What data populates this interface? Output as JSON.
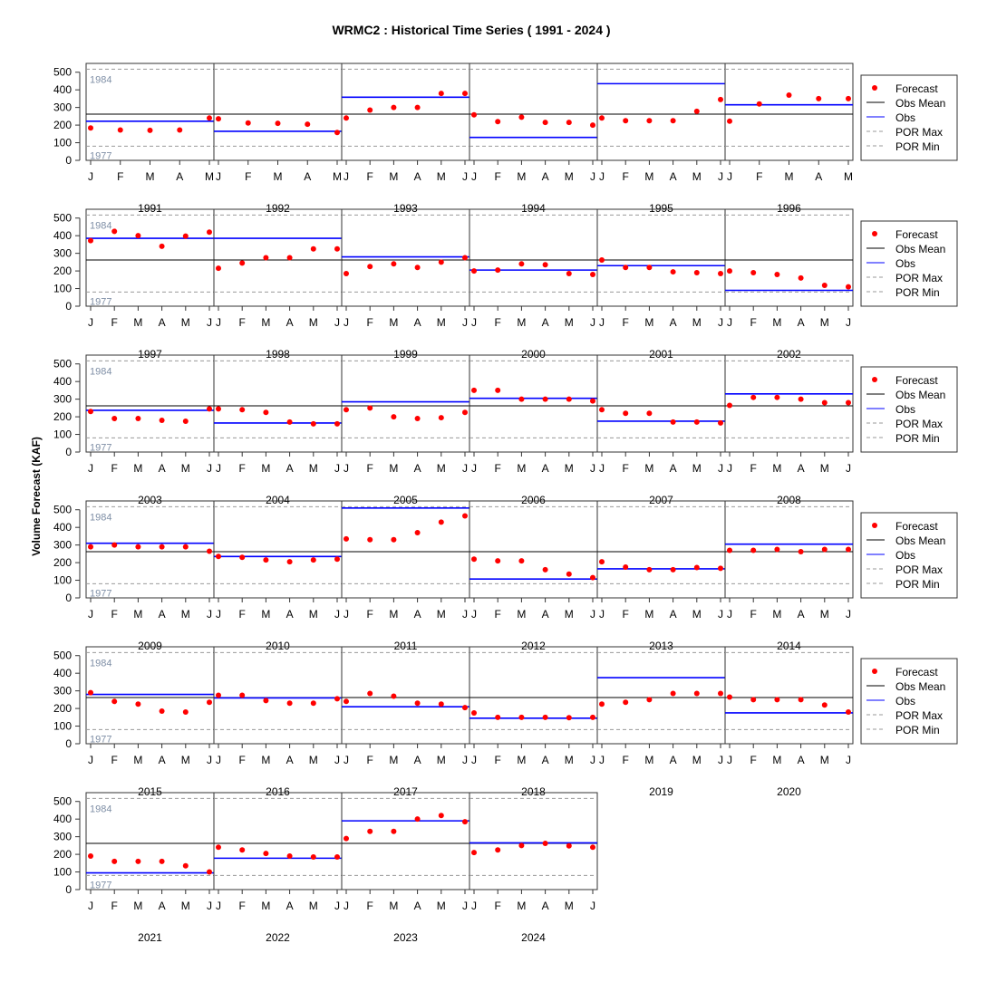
{
  "chart_data": {
    "type": "scatter",
    "title": "WRMC2 : Historical Time Series ( 1991 - 2024 )",
    "ylabel": "Volume Forecast (KAF)",
    "ylim": [
      0,
      550
    ],
    "yticks": [
      0,
      100,
      200,
      300,
      400,
      500
    ],
    "obs_mean": 262,
    "por_max": {
      "value": 517,
      "label": "1984"
    },
    "por_min": {
      "value": 80,
      "label": "1977"
    },
    "legend_labels": [
      "Forecast",
      "Obs Mean",
      "Obs",
      "POR Max",
      "POR Min"
    ],
    "legend_position": "right",
    "colors": {
      "forecast": "#ff0000",
      "obs": "#0000ff",
      "obs_mean": "#000000",
      "por": "#999999",
      "por_label": "#7f8fa6"
    },
    "years": [
      {
        "year": "1991",
        "months": [
          "J",
          "F",
          "M",
          "A",
          "M"
        ],
        "forecast": [
          184,
          172,
          170,
          172,
          240
        ],
        "obs": 222
      },
      {
        "year": "1992",
        "months": [
          "J",
          "F",
          "M",
          "A",
          "M"
        ],
        "forecast": [
          236,
          212,
          210,
          205,
          158
        ],
        "obs": 165
      },
      {
        "year": "1993",
        "months": [
          "J",
          "F",
          "M",
          "A",
          "M",
          "J"
        ],
        "forecast": [
          240,
          285,
          300,
          300,
          380,
          380
        ],
        "obs": 358
      },
      {
        "year": "1994",
        "months": [
          "J",
          "F",
          "M",
          "A",
          "M",
          "J"
        ],
        "forecast": [
          258,
          220,
          245,
          215,
          215,
          200
        ],
        "obs": 130
      },
      {
        "year": "1995",
        "months": [
          "J",
          "F",
          "M",
          "A",
          "M",
          "J"
        ],
        "forecast": [
          240,
          225,
          225,
          225,
          278,
          345
        ],
        "obs": 435
      },
      {
        "year": "1996",
        "months": [
          "J",
          "F",
          "M",
          "A",
          "M"
        ],
        "forecast": [
          222,
          320,
          370,
          350,
          350
        ],
        "obs": 315
      },
      {
        "year": "1997",
        "months": [
          "J",
          "F",
          "M",
          "A",
          "M",
          "J"
        ],
        "forecast": [
          372,
          425,
          400,
          340,
          398,
          420
        ],
        "obs": 385
      },
      {
        "year": "1998",
        "months": [
          "J",
          "F",
          "M",
          "A",
          "M",
          "J"
        ],
        "forecast": [
          215,
          245,
          275,
          275,
          325,
          325
        ],
        "obs": 385
      },
      {
        "year": "1999",
        "months": [
          "J",
          "F",
          "M",
          "A",
          "M",
          "J"
        ],
        "forecast": [
          185,
          225,
          240,
          220,
          250,
          275
        ],
        "obs": 280
      },
      {
        "year": "2000",
        "months": [
          "J",
          "F",
          "M",
          "A",
          "M",
          "J"
        ],
        "forecast": [
          200,
          205,
          240,
          235,
          185,
          180
        ],
        "obs": 205
      },
      {
        "year": "2001",
        "months": [
          "J",
          "F",
          "M",
          "A",
          "M",
          "J"
        ],
        "forecast": [
          262,
          220,
          220,
          195,
          190,
          185
        ],
        "obs": 230
      },
      {
        "year": "2002",
        "months": [
          "J",
          "F",
          "M",
          "A",
          "M",
          "J"
        ],
        "forecast": [
          200,
          190,
          180,
          160,
          118,
          110
        ],
        "obs": 90
      },
      {
        "year": "2003",
        "months": [
          "J",
          "F",
          "M",
          "A",
          "M",
          "J"
        ],
        "forecast": [
          230,
          190,
          190,
          180,
          175,
          245
        ],
        "obs": 237
      },
      {
        "year": "2004",
        "months": [
          "J",
          "F",
          "M",
          "A",
          "M",
          "J"
        ],
        "forecast": [
          245,
          240,
          225,
          170,
          160,
          160
        ],
        "obs": 165
      },
      {
        "year": "2005",
        "months": [
          "J",
          "F",
          "M",
          "A",
          "M",
          "J"
        ],
        "forecast": [
          240,
          250,
          200,
          190,
          195,
          225
        ],
        "obs": 285
      },
      {
        "year": "2006",
        "months": [
          "J",
          "F",
          "M",
          "A",
          "M",
          "J"
        ],
        "forecast": [
          350,
          350,
          300,
          300,
          300,
          290
        ],
        "obs": 305
      },
      {
        "year": "2007",
        "months": [
          "J",
          "F",
          "M",
          "A",
          "M",
          "J"
        ],
        "forecast": [
          240,
          220,
          220,
          170,
          170,
          165
        ],
        "obs": 175
      },
      {
        "year": "2008",
        "months": [
          "J",
          "F",
          "M",
          "A",
          "M",
          "J"
        ],
        "forecast": [
          265,
          310,
          310,
          300,
          280,
          280
        ],
        "obs": 330
      },
      {
        "year": "2009",
        "months": [
          "J",
          "F",
          "M",
          "A",
          "M",
          "J"
        ],
        "forecast": [
          290,
          300,
          290,
          290,
          290,
          265
        ],
        "obs": 310
      },
      {
        "year": "2010",
        "months": [
          "J",
          "F",
          "M",
          "A",
          "M",
          "J"
        ],
        "forecast": [
          235,
          230,
          215,
          205,
          215,
          220
        ],
        "obs": 235
      },
      {
        "year": "2011",
        "months": [
          "J",
          "F",
          "M",
          "A",
          "M",
          "J"
        ],
        "forecast": [
          335,
          330,
          330,
          370,
          430,
          465
        ],
        "obs": 510
      },
      {
        "year": "2012",
        "months": [
          "J",
          "F",
          "M",
          "A",
          "M",
          "J"
        ],
        "forecast": [
          220,
          210,
          210,
          160,
          135,
          115
        ],
        "obs": 107
      },
      {
        "year": "2013",
        "months": [
          "J",
          "F",
          "M",
          "A",
          "M",
          "J"
        ],
        "forecast": [
          205,
          175,
          160,
          160,
          172,
          168
        ],
        "obs": 165
      },
      {
        "year": "2014",
        "months": [
          "J",
          "F",
          "M",
          "A",
          "M",
          "J"
        ],
        "forecast": [
          270,
          270,
          275,
          262,
          275,
          275
        ],
        "obs": 305
      },
      {
        "year": "2015",
        "months": [
          "J",
          "F",
          "M",
          "A",
          "M",
          "J"
        ],
        "forecast": [
          290,
          240,
          225,
          185,
          180,
          235
        ],
        "obs": 280
      },
      {
        "year": "2016",
        "months": [
          "J",
          "F",
          "M",
          "A",
          "M",
          "J"
        ],
        "forecast": [
          275,
          275,
          245,
          230,
          230,
          255
        ],
        "obs": 260
      },
      {
        "year": "2017",
        "months": [
          "J",
          "F",
          "M",
          "A",
          "M",
          "J"
        ],
        "forecast": [
          240,
          285,
          270,
          230,
          225,
          205
        ],
        "obs": 210
      },
      {
        "year": "2018",
        "months": [
          "J",
          "F",
          "M",
          "A",
          "M",
          "J"
        ],
        "forecast": [
          175,
          150,
          150,
          150,
          148,
          150
        ],
        "obs": 145
      },
      {
        "year": "2019",
        "months": [
          "J",
          "F",
          "M",
          "A",
          "M",
          "J"
        ],
        "forecast": [
          225,
          235,
          250,
          285,
          285,
          285
        ],
        "obs": 375
      },
      {
        "year": "2020",
        "months": [
          "J",
          "F",
          "M",
          "A",
          "M",
          "J"
        ],
        "forecast": [
          265,
          250,
          250,
          250,
          220,
          180
        ],
        "obs": 175
      },
      {
        "year": "2021",
        "months": [
          "J",
          "F",
          "M",
          "A",
          "M",
          "J"
        ],
        "forecast": [
          190,
          160,
          160,
          160,
          135,
          100
        ],
        "obs": 95
      },
      {
        "year": "2022",
        "months": [
          "J",
          "F",
          "M",
          "A",
          "M",
          "J"
        ],
        "forecast": [
          240,
          225,
          205,
          190,
          185,
          185
        ],
        "obs": 178
      },
      {
        "year": "2023",
        "months": [
          "J",
          "F",
          "M",
          "A",
          "M",
          "J"
        ],
        "forecast": [
          290,
          330,
          330,
          400,
          420,
          385
        ],
        "obs": 390
      },
      {
        "year": "2024",
        "months": [
          "J",
          "F",
          "M",
          "A",
          "M",
          "J"
        ],
        "forecast": [
          210,
          225,
          250,
          262,
          248,
          240
        ],
        "obs": 265
      }
    ]
  }
}
